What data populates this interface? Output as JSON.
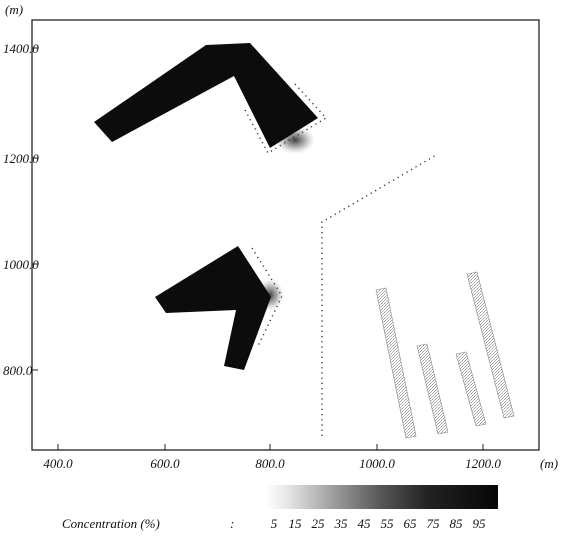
{
  "axes": {
    "y_unit": "(m)",
    "x_unit": "(m)",
    "x_ticks": [
      "400.0",
      "600.0",
      "800.0",
      "1000.0",
      "1200.0"
    ],
    "y_ticks": [
      "1400.0",
      "1200.0",
      "1000.0",
      "800.0"
    ],
    "x_range": [
      400,
      1260
    ],
    "y_range": [
      660,
      1440
    ]
  },
  "legend": {
    "label": "Concentration (%)",
    "separator": ":",
    "values": [
      "5",
      "15",
      "25",
      "35",
      "45",
      "55",
      "65",
      "75",
      "85",
      "95"
    ]
  },
  "colors": {
    "building": "#0c0c0c",
    "dots": "#333333",
    "frame": "#222222"
  }
}
